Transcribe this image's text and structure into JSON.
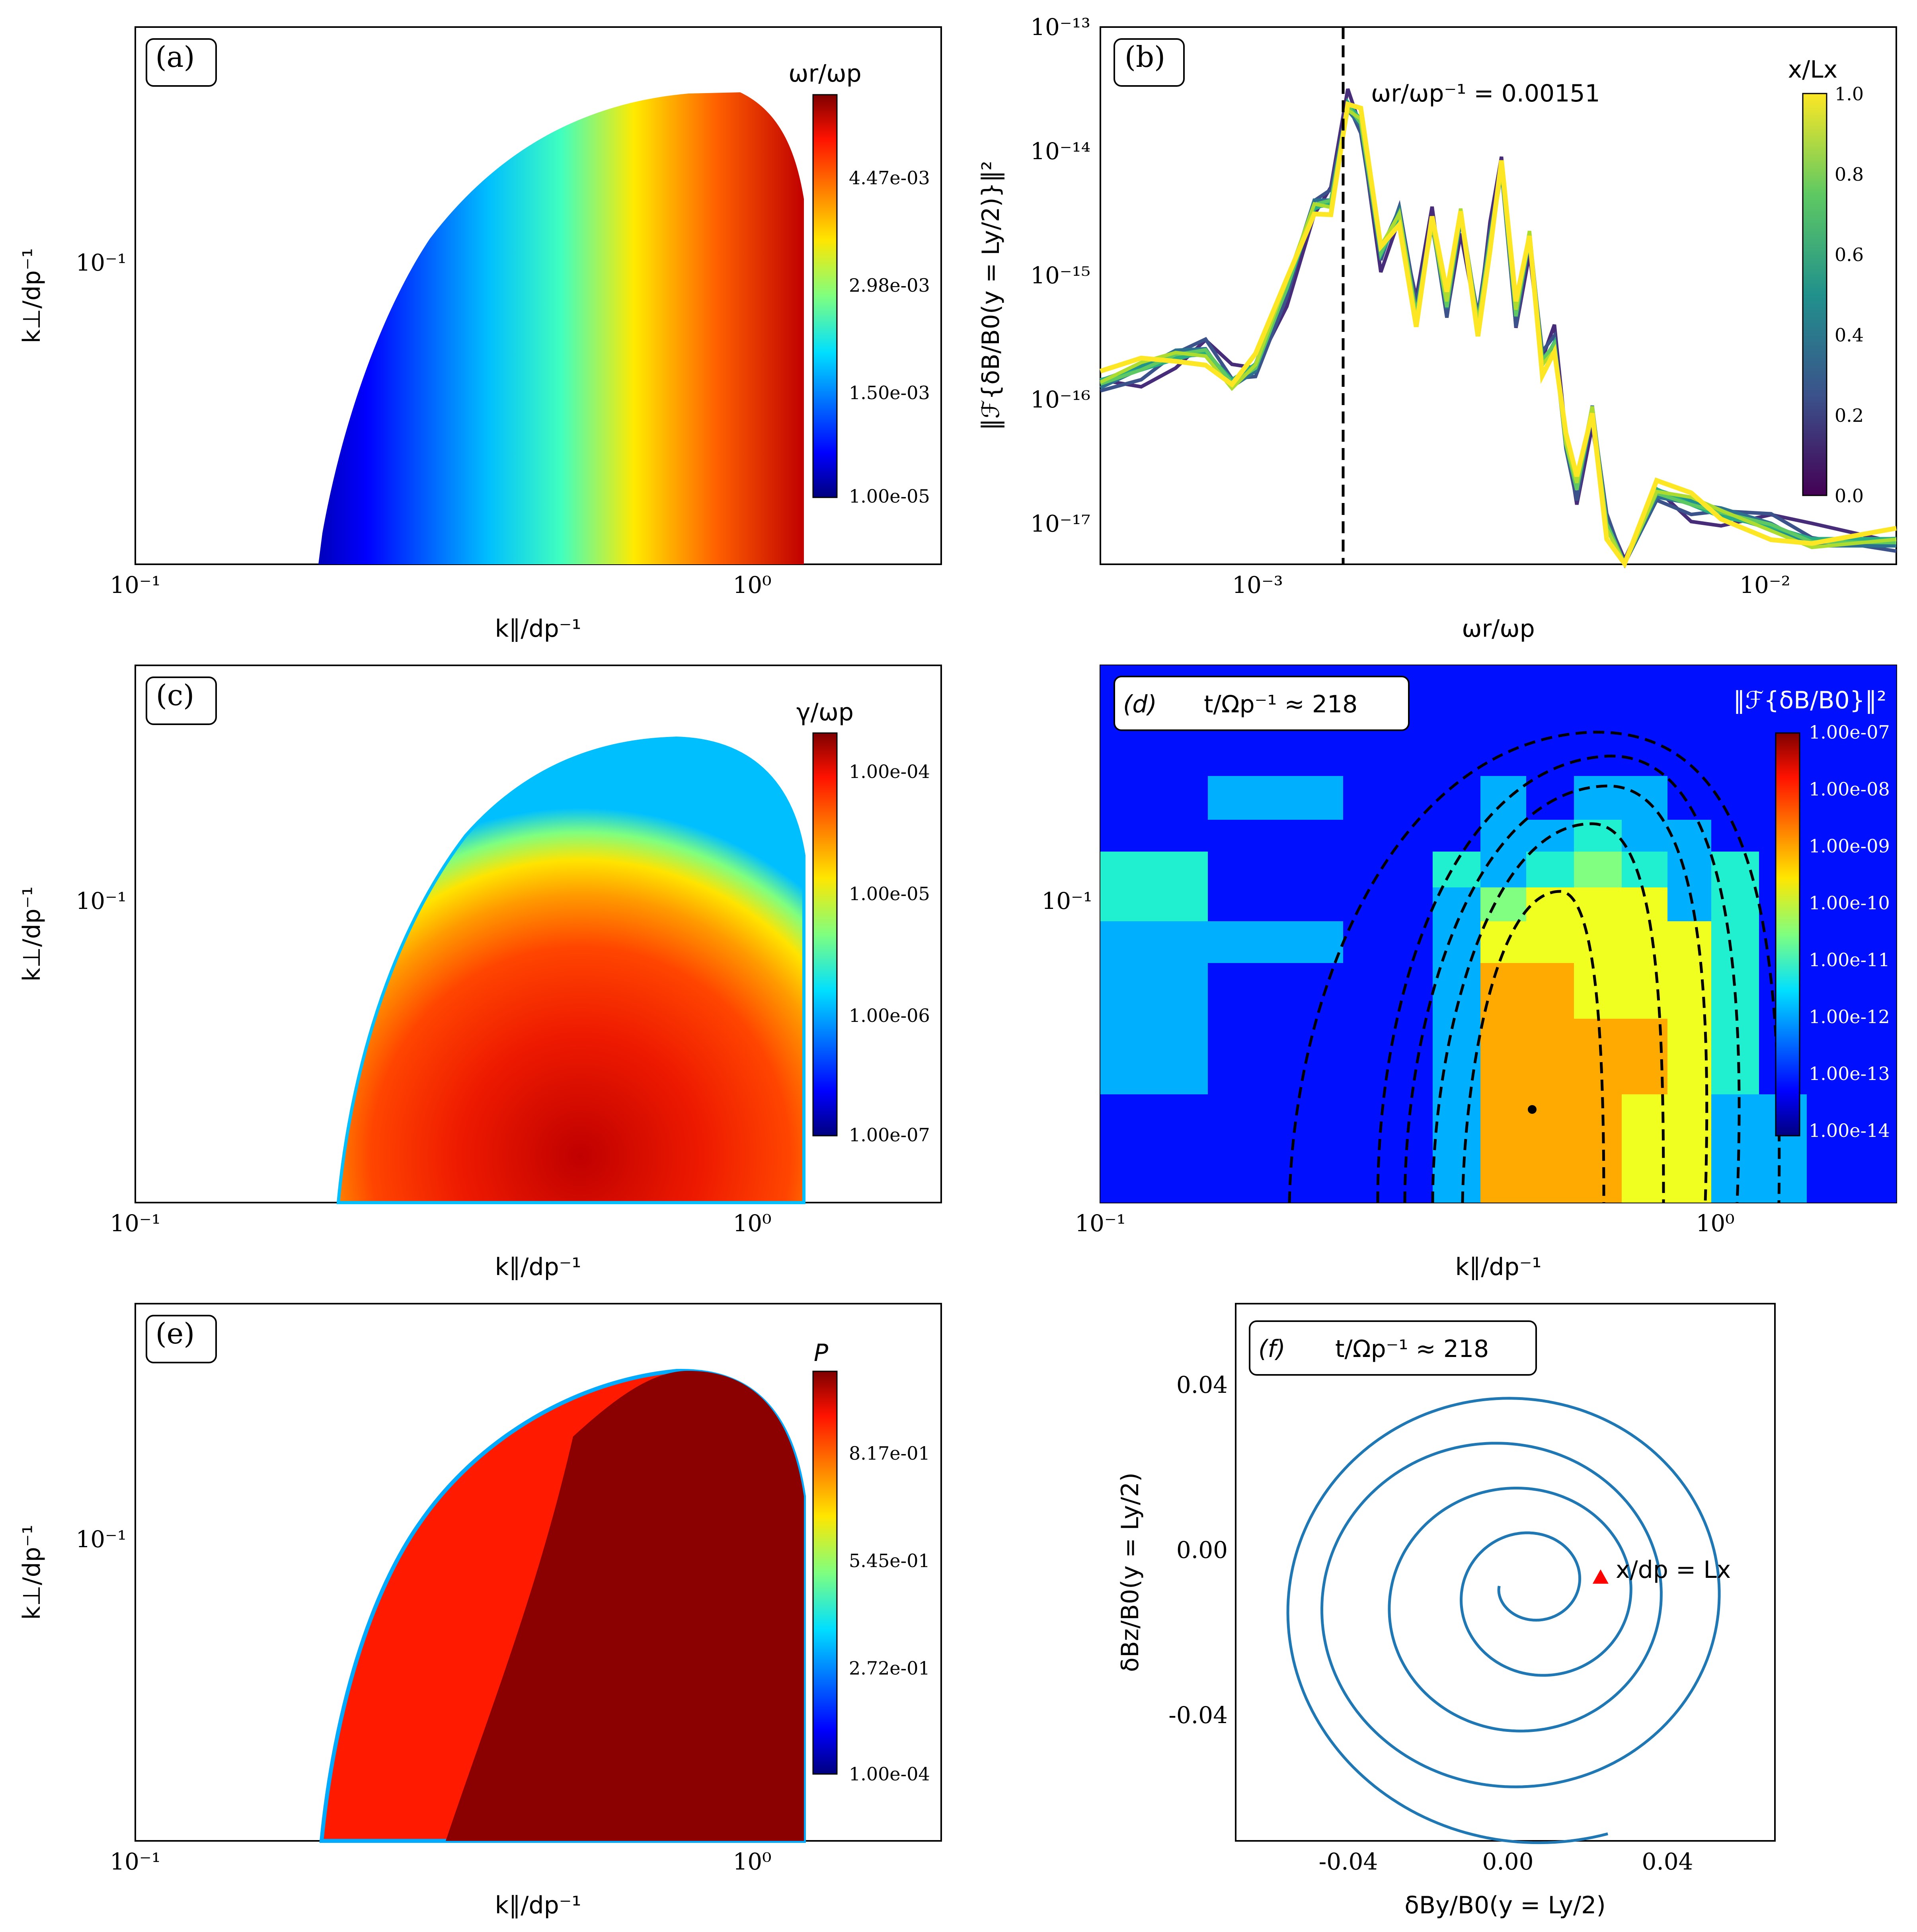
{
  "chart_data": [
    {
      "panel": "a",
      "type": "heatmap",
      "tag": "(a)",
      "xlabel": "k∥/dp⁻¹",
      "ylabel": "k⊥/dp⁻¹",
      "x_ticks": [
        "10⁻¹",
        "10⁰"
      ],
      "y_ticks": [
        "10⁻¹"
      ],
      "xlim": [
        0.1,
        2.0
      ],
      "ylim": [
        0.01,
        0.4
      ],
      "scale": "log-log",
      "colorbar": {
        "label": "ωr/ωp",
        "ticks": [
          "4.47e-03",
          "2.98e-03",
          "1.50e-03",
          "1.00e-05"
        ],
        "colormap": "jet"
      },
      "region": {
        "k_par_min": 0.2,
        "k_par_max": 1.2,
        "k_perp_max": 0.32,
        "peak_k_par": 0.75
      }
    },
    {
      "panel": "b",
      "type": "line",
      "tag": "(b)",
      "xlabel": "ωr/ωp",
      "ylabel": "‖ℱ{δB/B0(y = Ly/2)}‖²",
      "x_ticks": [
        "10⁻³",
        "10⁻²"
      ],
      "y_ticks": [
        "10⁻¹³",
        "10⁻¹⁴",
        "10⁻¹⁵",
        "10⁻¹⁶",
        "10⁻¹⁷"
      ],
      "xlim": [
        0.0005,
        0.0175
      ],
      "ylim": [
        5e-18,
        1e-13
      ],
      "scale": "log-log",
      "annotation": "ωr/ωp⁻¹ = 0.00151",
      "vline_x": 0.00151,
      "colorbar": {
        "label": "x/Lx",
        "ticks": [
          "1.0",
          "0.8",
          "0.6",
          "0.4",
          "0.2",
          "0.0"
        ],
        "colormap": "viridis"
      },
      "spectrum": {
        "x": [
          0.0005,
          0.0006,
          0.0007,
          0.0008,
          0.0009,
          0.001,
          0.00115,
          0.0013,
          0.0014,
          0.00151,
          0.0016,
          0.00175,
          0.0019,
          0.00205,
          0.0022,
          0.00235,
          0.0025,
          0.0027,
          0.00285,
          0.003,
          0.0032,
          0.0034,
          0.0036,
          0.0038,
          0.004,
          0.0042,
          0.0045,
          0.0048,
          0.0052,
          0.006,
          0.007,
          0.008,
          0.01,
          0.012,
          0.0175
        ],
        "y": [
          1.5e-16,
          1.8e-16,
          2.2e-16,
          2.5e-16,
          1.5e-16,
          2e-16,
          8e-16,
          3.5e-15,
          4e-15,
          2.5e-14,
          1.8e-14,
          1.5e-15,
          3e-15,
          5e-16,
          3e-15,
          6e-16,
          3e-15,
          4e-16,
          2e-15,
          8e-15,
          5e-16,
          2e-15,
          2e-16,
          3e-16,
          5e-17,
          2e-17,
          8e-17,
          1e-17,
          4e-18,
          2e-17,
          1.5e-17,
          1.2e-17,
          1e-17,
          8e-18,
          8e-18
        ]
      }
    },
    {
      "panel": "c",
      "type": "heatmap",
      "tag": "(c)",
      "xlabel": "k∥/dp⁻¹",
      "ylabel": "k⊥/dp⁻¹",
      "x_ticks": [
        "10⁻¹",
        "10⁰"
      ],
      "y_ticks": [
        "10⁻¹"
      ],
      "xlim": [
        0.1,
        2.0
      ],
      "ylim": [
        0.01,
        0.4
      ],
      "scale": "log-log",
      "colorbar": {
        "label": "γ/ωp",
        "ticks": [
          "1.00e-04",
          "1.00e-05",
          "1.00e-06",
          "1.00e-07"
        ],
        "colormap": "jet"
      },
      "region": {
        "k_par_min": 0.21,
        "k_par_max": 1.2,
        "k_perp_max": 0.31,
        "max_growth_k_par": 0.5
      }
    },
    {
      "panel": "d",
      "type": "heatmap",
      "tag": "(d)",
      "title": "t/Ωp⁻¹ ≈ 218",
      "xlabel": "k∥/dp⁻¹",
      "ylabel": "",
      "x_ticks": [
        "10⁻¹",
        "10⁰"
      ],
      "y_ticks": [
        "10⁻¹"
      ],
      "xlim": [
        0.1,
        2.0
      ],
      "ylim": [
        0.01,
        0.4
      ],
      "scale": "log-log",
      "colorbar": {
        "label": "‖ℱ{δB/B0}‖²",
        "ticks": [
          "1.00e-07",
          "1.00e-08",
          "1.00e-09",
          "1.00e-10",
          "1.00e-11",
          "1.00e-12",
          "1.00e-13",
          "1.00e-14"
        ],
        "colormap": "jet"
      },
      "contour_levels": 5,
      "marker": {
        "k_par": 0.5,
        "k_perp": 0.025
      }
    },
    {
      "panel": "e",
      "type": "heatmap",
      "tag": "(e)",
      "xlabel": "k∥/dp⁻¹",
      "ylabel": "k⊥/dp⁻¹",
      "x_ticks": [
        "10⁻¹",
        "10⁰"
      ],
      "y_ticks": [
        "10⁻¹"
      ],
      "xlim": [
        0.1,
        2.0
      ],
      "ylim": [
        0.01,
        0.4
      ],
      "scale": "log-log",
      "colorbar": {
        "label": "P",
        "ticks": [
          "8.17e-01",
          "5.45e-01",
          "2.72e-01",
          "1.00e-04"
        ],
        "colormap": "jet"
      },
      "region": {
        "k_par_min": 0.2,
        "k_par_max": 1.2,
        "k_perp_max": 0.31
      }
    },
    {
      "panel": "f",
      "type": "line",
      "tag": "(f)",
      "title": "t/Ωp⁻¹ ≈ 218",
      "xlabel": "δBy/B0(y = Ly/2)",
      "ylabel": "δBz/B0(y = Ly/2)",
      "x_ticks": [
        "-0.04",
        "0.00",
        "0.04"
      ],
      "y_ticks": [
        "0.04",
        "0.00",
        "-0.04"
      ],
      "xlim": [
        -0.065,
        0.068
      ],
      "ylim": [
        -0.075,
        0.062
      ],
      "annotation": "x/dp = Lx",
      "endpoint": {
        "x": 0.025,
        "y": -0.008
      },
      "spiral": {
        "turns": 4.3,
        "r_start": 0.005,
        "r_end": 0.062,
        "center": [
          0.005,
          -0.01
        ]
      }
    }
  ]
}
